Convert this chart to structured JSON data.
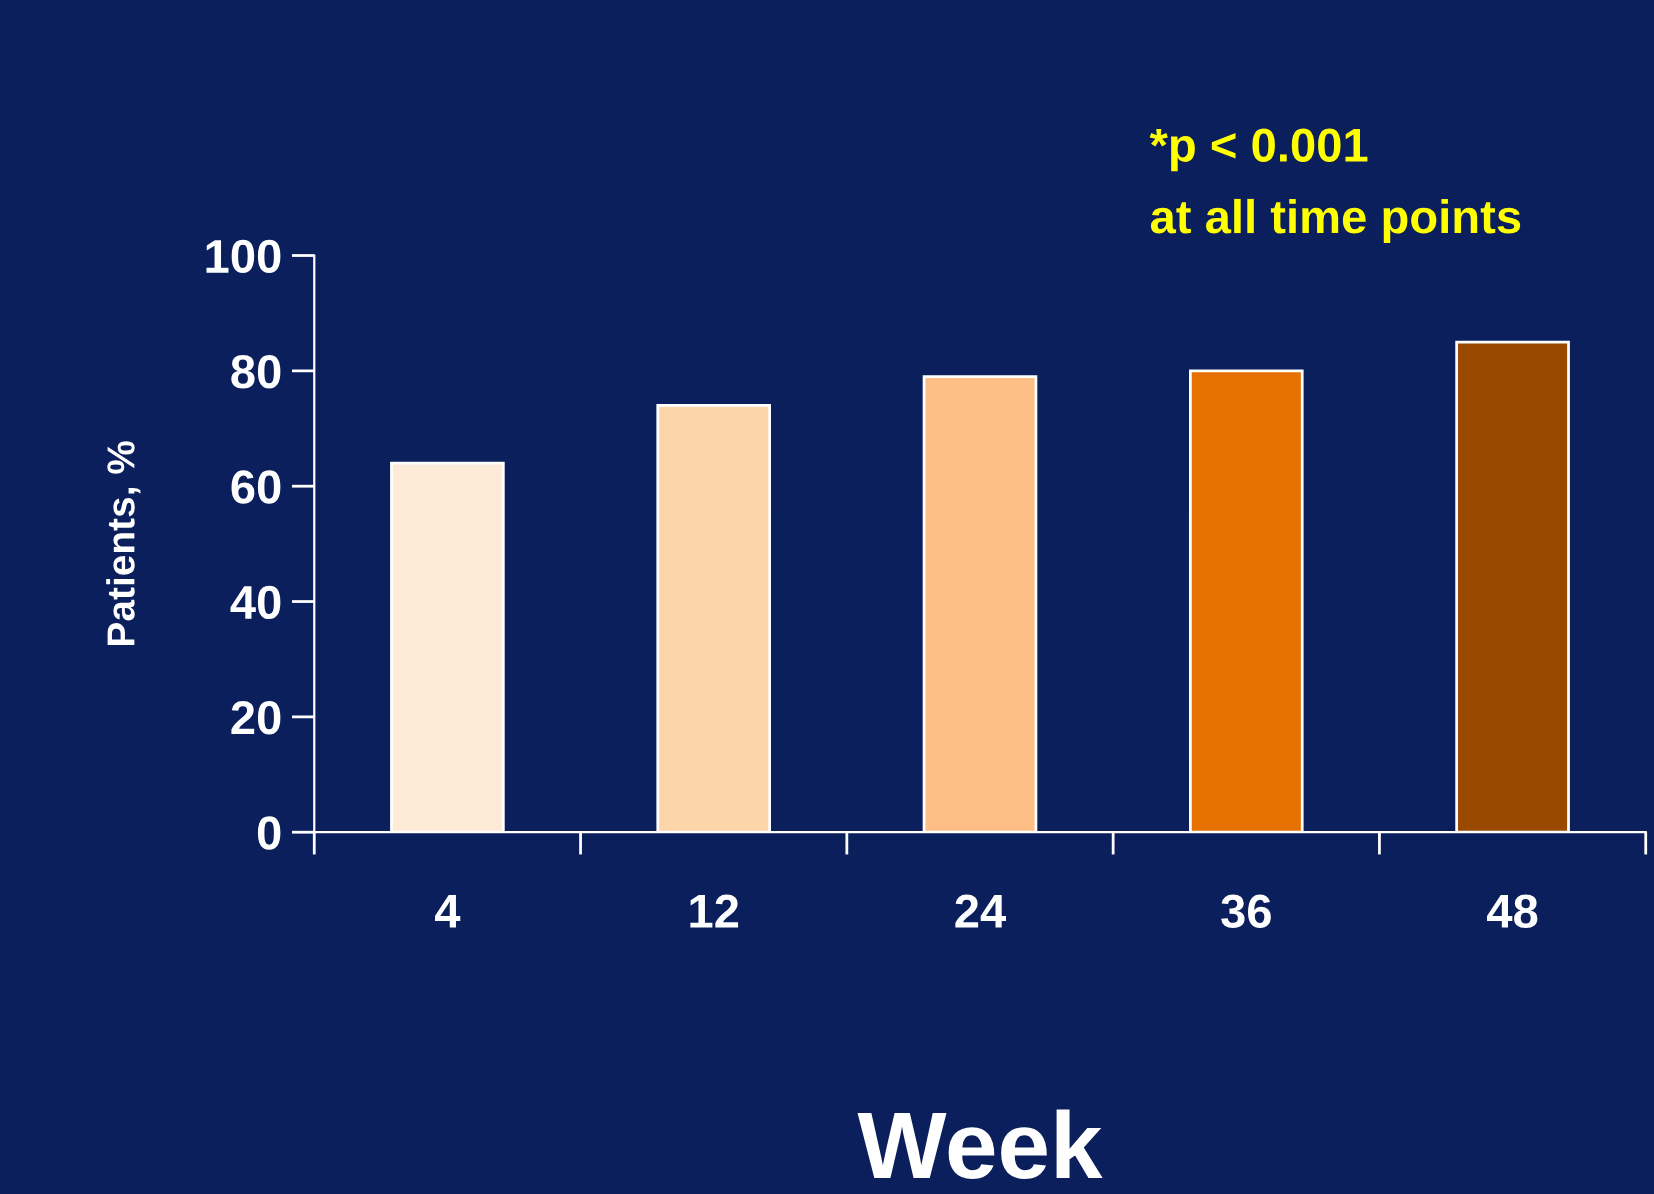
{
  "chart_data": {
    "type": "bar",
    "categories": [
      "4",
      "12",
      "24",
      "36",
      "48"
    ],
    "values": [
      64,
      74,
      79,
      80,
      85
    ],
    "colors": [
      "#fdebd8",
      "#fdd5ab",
      "#fdbf86",
      "#e67000",
      "#994a00"
    ],
    "xlabel": "Week",
    "ylabel": "Patients, %",
    "ylim": [
      0,
      100
    ],
    "yticks": [
      0,
      20,
      40,
      60,
      80,
      100
    ],
    "annotations": [
      "*p < 0.001",
      "at all time points"
    ],
    "grid": false,
    "legend": false
  }
}
